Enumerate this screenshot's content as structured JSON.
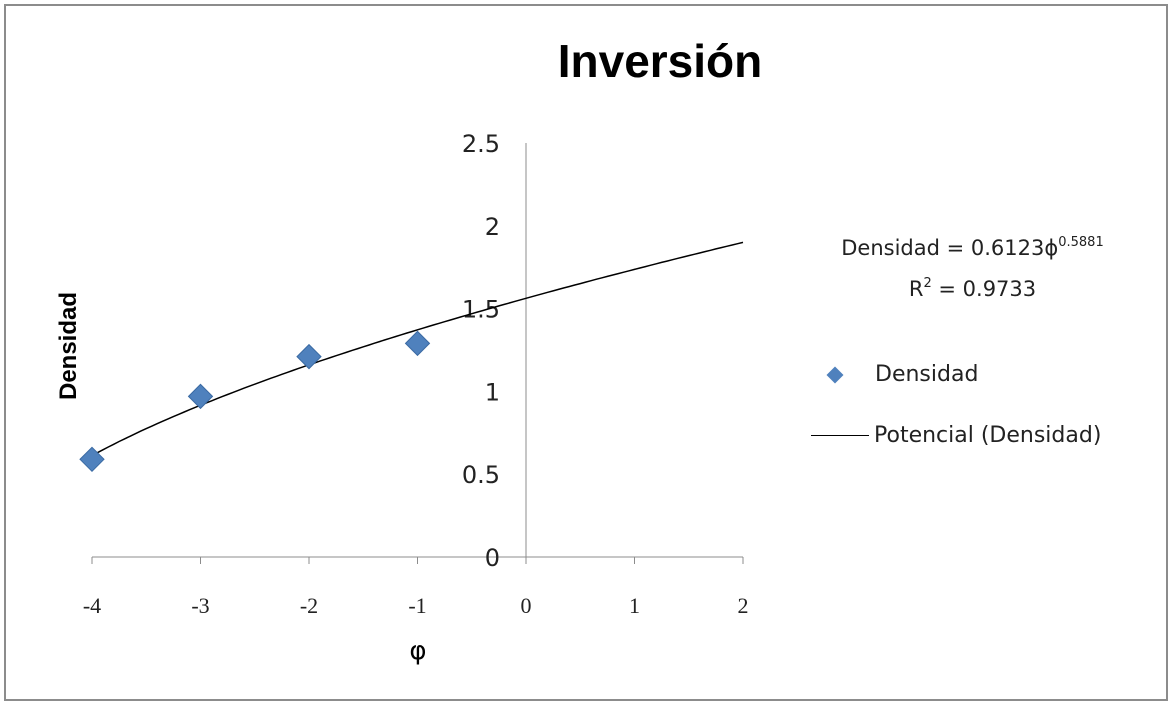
{
  "chart_data": {
    "type": "scatter",
    "title": "Inversión",
    "xlabel": "φ",
    "ylabel": "Densidad",
    "xlim": [
      -4,
      2
    ],
    "ylim": [
      0,
      2.5
    ],
    "x_ticks": [
      "-4",
      "-3",
      "-2",
      "-1",
      "0",
      "1",
      "2"
    ],
    "y_ticks": [
      "0",
      "0.5",
      "1",
      "1.5",
      "2",
      "2.5"
    ],
    "grid": false,
    "legend_position": "right",
    "series": [
      {
        "name": "Densidad",
        "marker": "diamond",
        "color": "#4f81bd",
        "points": [
          {
            "x": -4,
            "y": 0.59
          },
          {
            "x": -3,
            "y": 0.97
          },
          {
            "x": -2,
            "y": 1.21
          },
          {
            "x": -1,
            "y": 1.29
          }
        ]
      },
      {
        "name": "Potencial (Densidad)",
        "type": "trendline",
        "color": "#000000"
      }
    ],
    "trendline": {
      "equation_text": "Densidad = 0.6123ϕ",
      "equation_exponent": "0.5881",
      "r2_text": "R",
      "r2_exponent": "2",
      "r2_value_text": " = 0.9733"
    }
  }
}
